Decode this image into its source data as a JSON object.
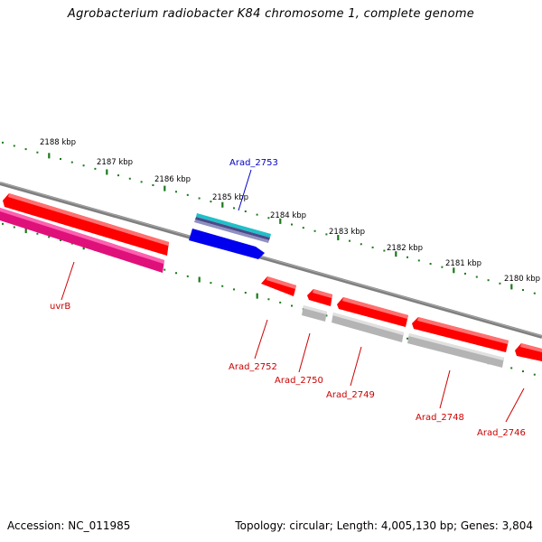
{
  "title": "Agrobacterium radiobacter K84 chromosome 1, complete genome",
  "footer": {
    "accession": "Accession: NC_011985",
    "summary": "Topology: circular; Length: 4,005,130 bp; Genes: 3,804"
  },
  "colors": {
    "backbone": "#7f7f7f",
    "tick": "#1a7a1a",
    "gene_red": "#ff0000",
    "gene_pink": "#e0107a",
    "gene_gray": "#b4b4b4",
    "gene_blue": "#0000ee",
    "gene_cyan": "#20c0c8",
    "label_red": "#cc0000",
    "label_blue": "#0000cc"
  },
  "scale_labels": [
    "2188 kbp",
    "2187 kbp",
    "2186 kbp",
    "2185 kbp",
    "2184 kbp",
    "2183 kbp",
    "2182 kbp",
    "2181 kbp",
    "2180 kbp"
  ],
  "gene_labels": {
    "arad_2753": "Arad_2753",
    "uvrb": "uvrB",
    "arad_2752": "Arad_2752",
    "arad_2750": "Arad_2750",
    "arad_2749": "Arad_2749",
    "arad_2748": "Arad_2748",
    "arad_2746": "Arad_2746"
  }
}
